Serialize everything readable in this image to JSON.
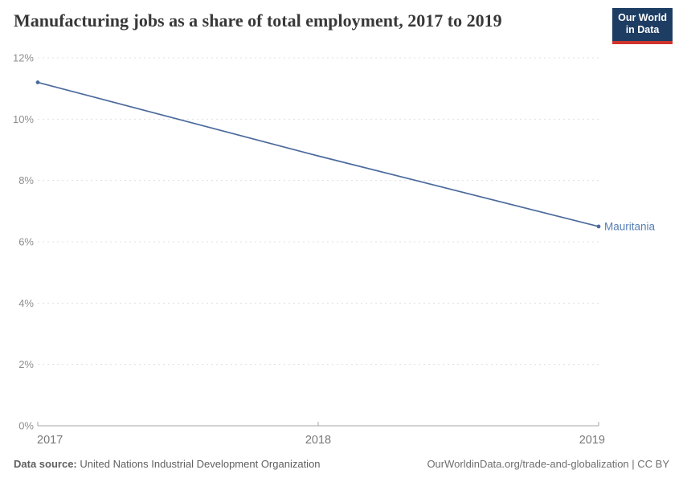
{
  "header": {
    "title": "Manufacturing jobs as a share of total employment, 2017 to 2019"
  },
  "logo": {
    "line1": "Our World",
    "line2": "in Data",
    "bg_color": "#1d3d63",
    "accent_color": "#d0342c"
  },
  "chart_data": {
    "type": "line",
    "title": "Manufacturing jobs as a share of total employment, 2017 to 2019",
    "x": [
      2017,
      2018,
      2019
    ],
    "series": [
      {
        "name": "Mauritania",
        "color": "#4c6a9c",
        "values": [
          11.2,
          8.8,
          6.5
        ]
      }
    ],
    "xlabel": "",
    "ylabel": "",
    "ylim": [
      0,
      12
    ],
    "yticks": [
      0,
      2,
      4,
      6,
      8,
      10,
      12
    ],
    "ytick_suffix": "%",
    "xticks": [
      2017,
      2018,
      2019
    ],
    "grid": "horizontal-dashed",
    "legend_position": "end-of-line-label",
    "colors": {
      "grid": "#e0e0e0",
      "axis": "#a5a5a5",
      "ytick_text": "#8f8f8f",
      "xtick_text": "#787878",
      "series_label": "#577eb4"
    }
  },
  "footer": {
    "source_label": "Data source:",
    "source_value": "United Nations Industrial Development Organization",
    "attribution": "OurWorldinData.org/trade-and-globalization | CC BY"
  }
}
